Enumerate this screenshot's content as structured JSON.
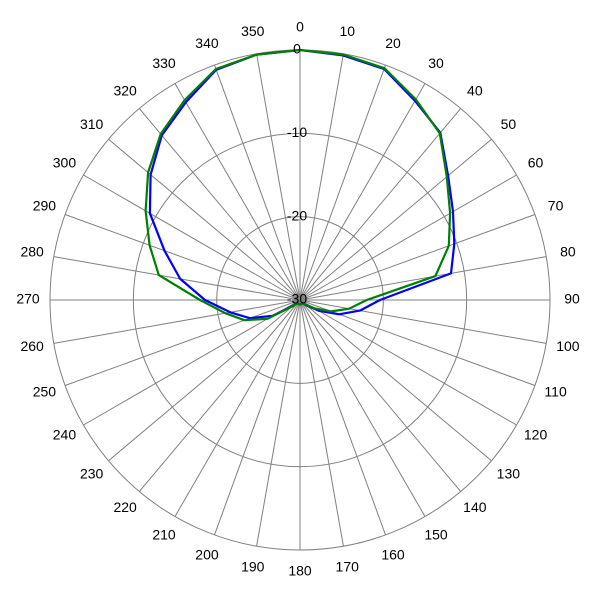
{
  "chart_data": {
    "type": "polar",
    "theta": [
      0,
      10,
      20,
      30,
      40,
      50,
      60,
      70,
      80,
      90,
      100,
      110,
      120,
      130,
      140,
      150,
      160,
      170,
      180,
      190,
      200,
      210,
      220,
      230,
      240,
      250,
      260,
      270,
      280,
      290,
      300,
      310,
      320,
      330,
      340,
      350
    ],
    "thetaticks": [
      0,
      10,
      20,
      30,
      40,
      50,
      60,
      70,
      80,
      90,
      100,
      110,
      120,
      130,
      140,
      150,
      160,
      170,
      180,
      190,
      200,
      210,
      220,
      230,
      240,
      250,
      260,
      270,
      280,
      290,
      300,
      310,
      320,
      330,
      340,
      350
    ],
    "rlim": [
      -30,
      0
    ],
    "rticks": [
      -30,
      -20,
      -10,
      0
    ],
    "direction": "clockwise",
    "zero": "top",
    "grid": true,
    "series": [
      {
        "color": "#0000ff",
        "values": [
          0,
          -0.2,
          -0.5,
          -2.4,
          -3.8,
          -6.8,
          -8.8,
          -10.3,
          -11.6,
          -20.4,
          -22.7,
          -25,
          -27.4,
          -29,
          -29.5,
          -29.5,
          -29.5,
          -29.5,
          -29.5,
          -29.5,
          -29.5,
          -29.5,
          -29.5,
          -29,
          -26.2,
          -23.6,
          -21.5,
          -18.6,
          -15.4,
          -12.7,
          -9.2,
          -6.6,
          -4.2,
          -2.6,
          -0.6,
          -0.1
        ]
      },
      {
        "color": "#008000",
        "values": [
          0,
          -0.1,
          -0.4,
          -2.2,
          -3.9,
          -7,
          -9.2,
          -11,
          -13.5,
          -22,
          -24,
          -26,
          -28,
          -29.2,
          -29.5,
          -29.5,
          -29.5,
          -29.5,
          -29.5,
          -29.5,
          -29.5,
          -29.5,
          -29.5,
          -28.8,
          -25.5,
          -22.9,
          -20.9,
          -18,
          -12.8,
          -10.8,
          -8.6,
          -6.2,
          -4,
          -2.3,
          -0.5,
          -0.1
        ]
      }
    ]
  }
}
